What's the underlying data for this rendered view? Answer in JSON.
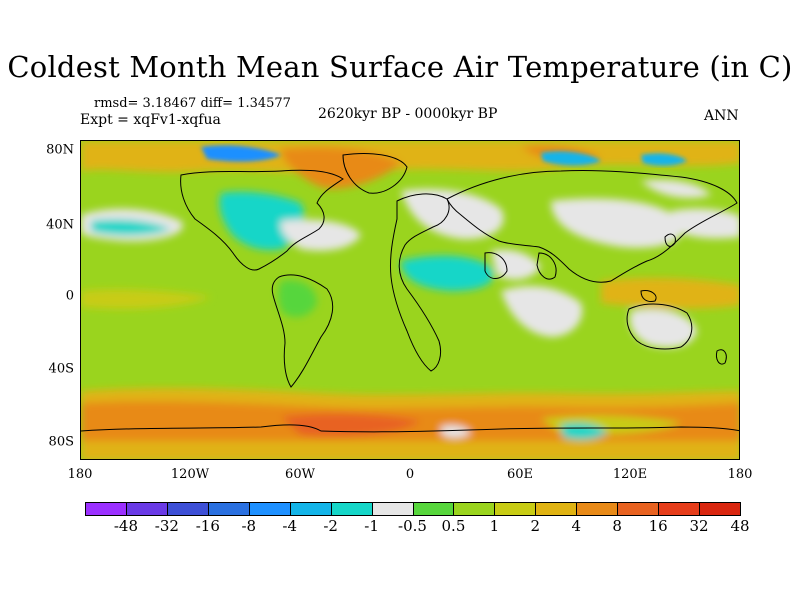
{
  "title": "Coldest Month Mean Surface Air Temperature (in C)",
  "stats_line": "rmsd= 3.18467 diff= 1.34577",
  "expt_line": "Expt = xqFv1-xqfua",
  "period_line": "2620kyr BP - 0000kyr BP",
  "season": "ANN",
  "lat_labels": [
    "80N",
    "40N",
    "0",
    "40S",
    "80S"
  ],
  "lon_labels": [
    "180",
    "120W",
    "60W",
    "0",
    "60E",
    "120E",
    "180"
  ],
  "colorbar": {
    "colors": [
      "#9b30ff",
      "#6a3ae6",
      "#3d4fd6",
      "#2a70e0",
      "#1e90ff",
      "#13b4e8",
      "#15d6c8",
      "#e6e6e6",
      "#57d63c",
      "#9ad41e",
      "#c8cc14",
      "#e0b312",
      "#e88a18",
      "#e86220",
      "#e63d1a",
      "#d9260f"
    ],
    "labels": [
      "-48",
      "-32",
      "-16",
      "-8",
      "-4",
      "-2",
      "-1",
      "-0.5",
      "0.5",
      "1",
      "2",
      "4",
      "8",
      "16",
      "32",
      "48"
    ]
  }
}
